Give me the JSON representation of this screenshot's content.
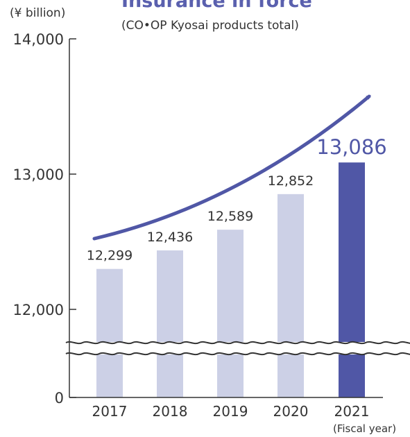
{
  "chart_data": {
    "type": "bar",
    "title": "Insurance in force",
    "subtitle": "(CO•OP Kyosai products total)",
    "ylabel": "(¥ billion)",
    "xlabel": "(Fiscal year)",
    "categories": [
      "2017",
      "2018",
      "2019",
      "2020",
      "2021"
    ],
    "values": [
      12299,
      12436,
      12589,
      12852,
      13086
    ],
    "value_labels": [
      "12,299",
      "12,436",
      "12,589",
      "12,852",
      "13,086"
    ],
    "ylim": [
      12000,
      14000
    ],
    "axis_break": true,
    "y_ticks": [
      {
        "value": 14000,
        "label": "14,000"
      },
      {
        "value": 13000,
        "label": "13,000"
      },
      {
        "value": 12000,
        "label": "12,000"
      },
      {
        "value": 0,
        "label": "0"
      }
    ],
    "grid": false,
    "trend_arrow": true,
    "highlight_index": 4,
    "colors": {
      "bar": "#ccd0e6",
      "bar_highlight": "#5057a6",
      "arrow": "#5057a6",
      "title": "#5a60ae",
      "highlight_label": "#5057a6",
      "text": "#333333",
      "axis": "#333333"
    }
  }
}
